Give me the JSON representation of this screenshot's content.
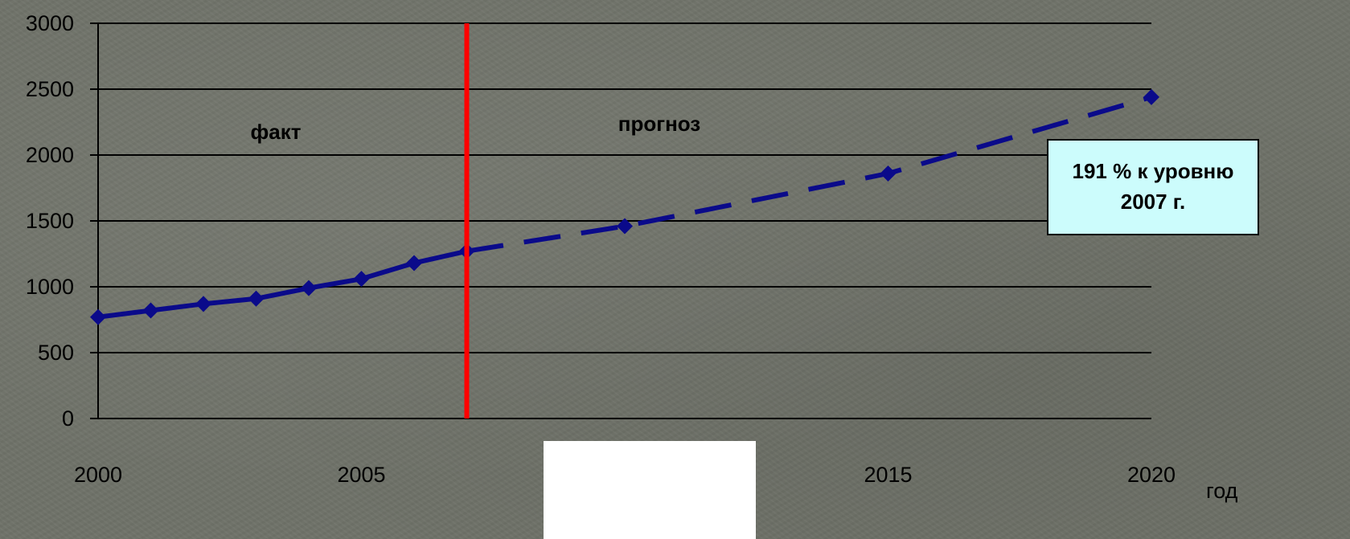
{
  "chart_data": {
    "type": "line",
    "title": "",
    "xlabel": "год",
    "ylabel": "",
    "xlim": [
      2000,
      2020
    ],
    "ylim": [
      0,
      3000
    ],
    "x_ticks": [
      "2000",
      "2005",
      "2015",
      "2020"
    ],
    "y_ticks": [
      "0",
      "500",
      "1000",
      "1500",
      "2000",
      "2500",
      "3000"
    ],
    "grid": true,
    "divider_x": 2007,
    "region_labels": {
      "left": "факт",
      "right": "прогноз"
    },
    "series": [
      {
        "style": "solid",
        "x": [
          2000,
          2001,
          2002,
          2003,
          2004,
          2005,
          2006,
          2007
        ],
        "y": [
          770,
          820,
          870,
          910,
          990,
          1060,
          1180,
          1270
        ]
      },
      {
        "style": "dashed",
        "x": [
          2007,
          2010,
          2015,
          2020
        ],
        "y": [
          1270,
          1460,
          1860,
          2440
        ]
      }
    ],
    "annotation": {
      "lines": [
        "191 % к уровню",
        "2007 г."
      ]
    }
  },
  "colors": {
    "series": "#0a0a8a",
    "divider": "#ff0000",
    "grid": "#000000",
    "callout_bg": "#ccfcfc"
  }
}
